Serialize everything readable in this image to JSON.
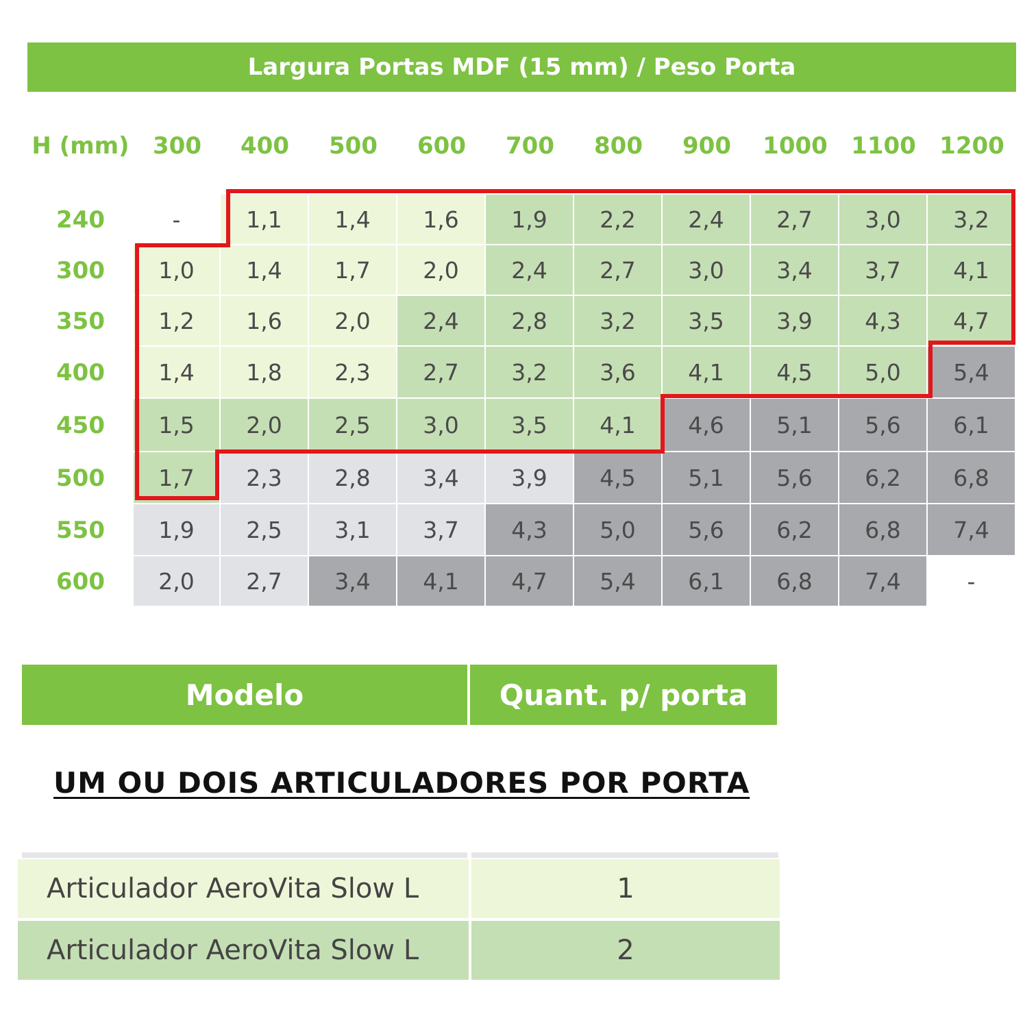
{
  "title": "Largura Portas MDF (15 mm) / Peso Porta",
  "corner_label": "H (mm)",
  "widths": [
    "300",
    "400",
    "500",
    "600",
    "700",
    "800",
    "900",
    "1000",
    "1100",
    "1200"
  ],
  "heights": [
    "240",
    "300",
    "350",
    "400",
    "450",
    "500",
    "550",
    "600"
  ],
  "rows": [
    [
      "-",
      "1,1",
      "1,4",
      "1,6",
      "1,9",
      "2,2",
      "2,4",
      "2,7",
      "3,0",
      "3,2"
    ],
    [
      "1,0",
      "1,4",
      "1,7",
      "2,0",
      "2,4",
      "2,7",
      "3,0",
      "3,4",
      "3,7",
      "4,1"
    ],
    [
      "1,2",
      "1,6",
      "2,0",
      "2,4",
      "2,8",
      "3,2",
      "3,5",
      "3,9",
      "4,3",
      "4,7"
    ],
    [
      "1,4",
      "1,8",
      "2,3",
      "2,7",
      "3,2",
      "3,6",
      "4,1",
      "4,5",
      "5,0",
      "5,4"
    ],
    [
      "1,5",
      "2,0",
      "2,5",
      "3,0",
      "3,5",
      "4,1",
      "4,6",
      "5,1",
      "5,6",
      "6,1"
    ],
    [
      "1,7",
      "2,3",
      "2,8",
      "3,4",
      "3,9",
      "4,5",
      "5,1",
      "5,6",
      "6,2",
      "6,8"
    ],
    [
      "1,9",
      "2,5",
      "3,1",
      "3,7",
      "4,3",
      "5,0",
      "5,6",
      "6,2",
      "6,8",
      "7,4"
    ],
    [
      "2,0",
      "2,7",
      "3,4",
      "4,1",
      "4,7",
      "5,4",
      "6,1",
      "6,8",
      "7,4",
      "-"
    ]
  ],
  "shade": [
    [
      "empty",
      "light",
      "light",
      "light",
      "mid",
      "mid",
      "mid",
      "mid",
      "mid",
      "mid"
    ],
    [
      "light",
      "light",
      "light",
      "light",
      "mid",
      "mid",
      "mid",
      "mid",
      "mid",
      "mid"
    ],
    [
      "light",
      "light",
      "light",
      "mid",
      "mid",
      "mid",
      "mid",
      "mid",
      "mid",
      "mid"
    ],
    [
      "light",
      "light",
      "light",
      "mid",
      "mid",
      "mid",
      "mid",
      "mid",
      "mid",
      "dgray"
    ],
    [
      "mid",
      "mid",
      "mid",
      "mid",
      "mid",
      "mid",
      "dgray",
      "dgray",
      "dgray",
      "dgray"
    ],
    [
      "mid",
      "lgray",
      "lgray",
      "lgray",
      "lgray",
      "dgray",
      "dgray",
      "dgray",
      "dgray",
      "dgray"
    ],
    [
      "lgray",
      "lgray",
      "lgray",
      "lgray",
      "dgray",
      "dgray",
      "dgray",
      "dgray",
      "dgray",
      "dgray"
    ],
    [
      "lgray",
      "lgray",
      "dgray",
      "dgray",
      "dgray",
      "dgray",
      "dgray",
      "dgray",
      "dgray",
      "empty"
    ]
  ],
  "colors": {
    "brand_green": "#7dc242",
    "light_green": "#eef6d9",
    "mid_green": "#c5dfb4",
    "light_gray": "#e1e2e6",
    "dark_gray": "#a7a9ac",
    "outline_red": "#e3161b"
  },
  "models_table": {
    "header_model": "Modelo",
    "header_qty": "Quant. p/ porta",
    "note": "UM OU DOIS ARTICULADORES POR PORTA",
    "rows": [
      {
        "model": "Articulador AeroVita Slow L",
        "qty": "1"
      },
      {
        "model": "Articulador AeroVita Slow L",
        "qty": "2"
      }
    ]
  }
}
